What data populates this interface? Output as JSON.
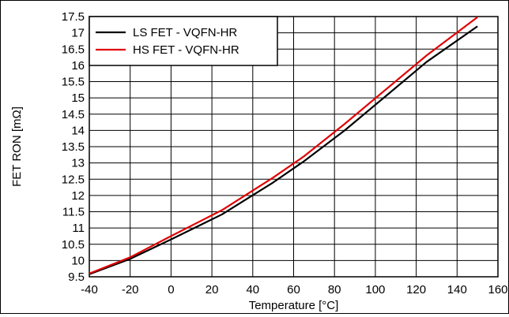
{
  "chart_data": {
    "type": "line",
    "xlabel": "Temperature [°C]",
    "ylabel": "FET RON [mΩ]",
    "xlim": [
      -40,
      160
    ],
    "ylim": [
      9.5,
      17.5
    ],
    "x_ticks": [
      "-40",
      "-20",
      "0",
      "20",
      "40",
      "60",
      "80",
      "100",
      "120",
      "140",
      "160"
    ],
    "y_ticks": [
      "9.5",
      "10",
      "10.5",
      "11",
      "11.5",
      "12",
      "12.5",
      "13",
      "13.5",
      "14",
      "14.5",
      "15",
      "15.5",
      "16",
      "16.5",
      "17",
      "17.5"
    ],
    "grid": true,
    "legend_position": "top-left",
    "series": [
      {
        "name": "LS FET - VQFN-HR",
        "color": "#000000",
        "x": [
          -40,
          -20,
          0,
          25,
          50,
          65,
          85,
          105,
          125,
          150
        ],
        "y": [
          9.58,
          10.05,
          10.65,
          11.42,
          12.4,
          13.05,
          14.0,
          15.05,
          16.1,
          17.2
        ]
      },
      {
        "name": "HS FET - VQFN-HR",
        "color": "#e00000",
        "x": [
          -40,
          -20,
          0,
          25,
          50,
          65,
          85,
          105,
          125,
          150
        ],
        "y": [
          9.6,
          10.1,
          10.75,
          11.55,
          12.55,
          13.2,
          14.2,
          15.25,
          16.3,
          17.48
        ]
      }
    ]
  }
}
